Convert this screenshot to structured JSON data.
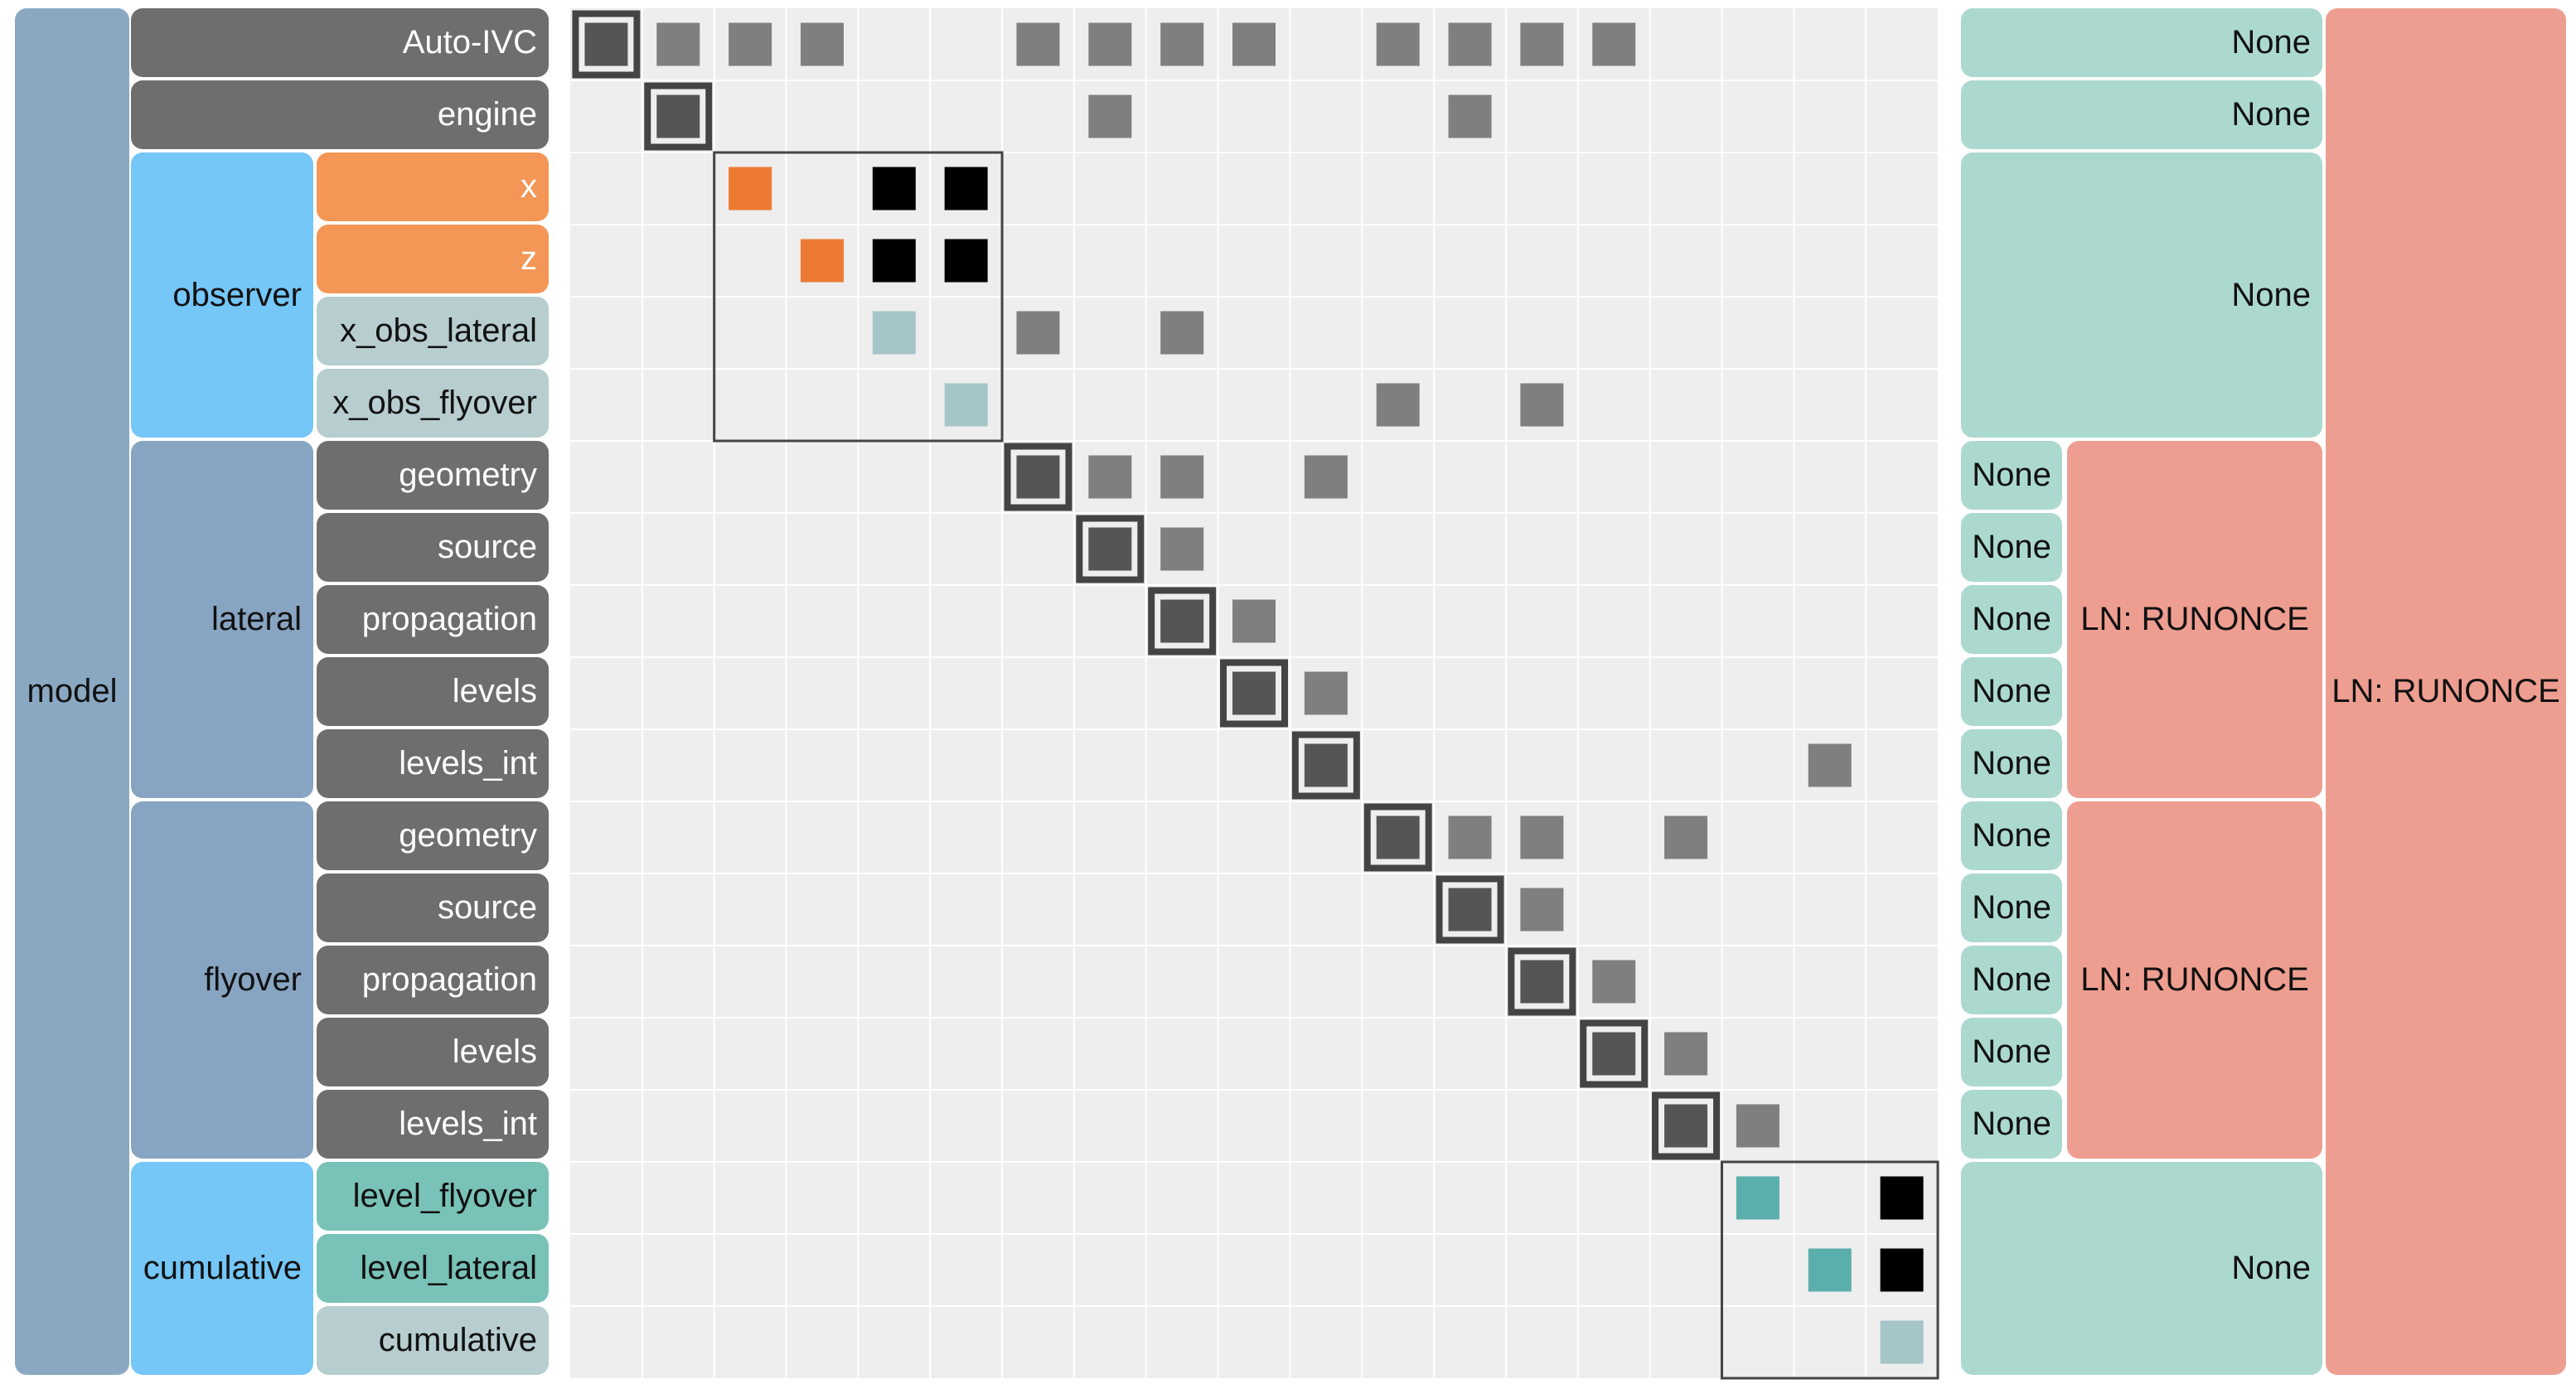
{
  "colors": {
    "model": "#8aa8c2",
    "group_blue": "#74c7f7",
    "group_slate": "#87a5c2",
    "var_gray": "#6e6e6e",
    "var_orange": "#f39656",
    "var_teal": "#79c2b8",
    "var_light": "#b7cdd0",
    "solver_none": "#acd9cf",
    "solver_ln": "#ee9e90",
    "matrix_bg": "#eeeeee",
    "cell_dark": "#6e6e6e",
    "cell_gray": "#7f7f7f",
    "cell_black": "#000000",
    "cell_orange": "#ed7a32",
    "cell_teal": "#5aaeab",
    "cell_lightblue": "#a6c5c9",
    "outline": "#444444"
  },
  "model": {
    "label": "model"
  },
  "groups": [
    {
      "label": "Auto-IVC",
      "leaf": true
    },
    {
      "label": "engine",
      "leaf": true
    },
    {
      "label": "observer",
      "leaf": false
    },
    {
      "label": "lateral",
      "leaf": false
    },
    {
      "label": "flyover",
      "leaf": false
    },
    {
      "label": "cumulative",
      "leaf": false
    }
  ],
  "variables": [
    {
      "label": "x",
      "color": "orange"
    },
    {
      "label": "z",
      "color": "orange"
    },
    {
      "label": "x_obs_lateral",
      "color": "light"
    },
    {
      "label": "x_obs_flyover",
      "color": "light"
    },
    {
      "label": "geometry",
      "color": "gray"
    },
    {
      "label": "source",
      "color": "gray"
    },
    {
      "label": "propagation",
      "color": "gray"
    },
    {
      "label": "levels",
      "color": "gray"
    },
    {
      "label": "levels_int",
      "color": "gray"
    },
    {
      "label": "geometry",
      "color": "gray"
    },
    {
      "label": "source",
      "color": "gray"
    },
    {
      "label": "propagation",
      "color": "gray"
    },
    {
      "label": "levels",
      "color": "gray"
    },
    {
      "label": "levels_int",
      "color": "gray"
    },
    {
      "label": "level_flyover",
      "color": "teal"
    },
    {
      "label": "level_lateral",
      "color": "teal"
    },
    {
      "label": "cumulative",
      "color": "light"
    }
  ],
  "linear_solvers": {
    "auto_ivc": "None",
    "engine": "None",
    "observer": "None",
    "lateral_items": [
      "None",
      "None",
      "None",
      "None",
      "None"
    ],
    "lateral_group": "LN: RUNONCE",
    "flyover_items": [
      "None",
      "None",
      "None",
      "None",
      "None"
    ],
    "flyover_group": "LN: RUNONCE",
    "cumulative": "None",
    "model": "LN: RUNONCE"
  },
  "matrix": {
    "size": 19,
    "diagonal": [
      "dark",
      "dark",
      "orange",
      "orange",
      "lightblue",
      "lightblue",
      "dark",
      "dark",
      "dark",
      "dark",
      "dark",
      "dark",
      "dark",
      "dark",
      "dark",
      "dark",
      "teal",
      "teal",
      "lightblue"
    ],
    "outlined_diagonal": [
      0,
      1,
      6,
      7,
      8,
      9,
      10,
      11,
      12,
      13,
      14,
      15
    ],
    "offdiagonal": [
      {
        "row": 0,
        "col": 1,
        "color": "gray"
      },
      {
        "row": 0,
        "col": 2,
        "color": "gray"
      },
      {
        "row": 0,
        "col": 3,
        "color": "gray"
      },
      {
        "row": 0,
        "col": 6,
        "color": "gray"
      },
      {
        "row": 0,
        "col": 7,
        "color": "gray"
      },
      {
        "row": 0,
        "col": 8,
        "color": "gray"
      },
      {
        "row": 0,
        "col": 9,
        "color": "gray"
      },
      {
        "row": 0,
        "col": 11,
        "color": "gray"
      },
      {
        "row": 0,
        "col": 12,
        "color": "gray"
      },
      {
        "row": 0,
        "col": 13,
        "color": "gray"
      },
      {
        "row": 0,
        "col": 14,
        "color": "gray"
      },
      {
        "row": 1,
        "col": 7,
        "color": "gray"
      },
      {
        "row": 1,
        "col": 12,
        "color": "gray"
      },
      {
        "row": 2,
        "col": 4,
        "color": "black"
      },
      {
        "row": 2,
        "col": 5,
        "color": "black"
      },
      {
        "row": 3,
        "col": 4,
        "color": "black"
      },
      {
        "row": 3,
        "col": 5,
        "color": "black"
      },
      {
        "row": 4,
        "col": 6,
        "color": "gray"
      },
      {
        "row": 4,
        "col": 8,
        "color": "gray"
      },
      {
        "row": 5,
        "col": 11,
        "color": "gray"
      },
      {
        "row": 5,
        "col": 13,
        "color": "gray"
      },
      {
        "row": 6,
        "col": 7,
        "color": "gray"
      },
      {
        "row": 6,
        "col": 8,
        "color": "gray"
      },
      {
        "row": 6,
        "col": 10,
        "color": "gray"
      },
      {
        "row": 7,
        "col": 8,
        "color": "gray"
      },
      {
        "row": 8,
        "col": 9,
        "color": "gray"
      },
      {
        "row": 9,
        "col": 10,
        "color": "gray"
      },
      {
        "row": 10,
        "col": 17,
        "color": "gray"
      },
      {
        "row": 11,
        "col": 12,
        "color": "gray"
      },
      {
        "row": 11,
        "col": 13,
        "color": "gray"
      },
      {
        "row": 11,
        "col": 15,
        "color": "gray"
      },
      {
        "row": 12,
        "col": 13,
        "color": "gray"
      },
      {
        "row": 13,
        "col": 14,
        "color": "gray"
      },
      {
        "row": 14,
        "col": 15,
        "color": "gray"
      },
      {
        "row": 15,
        "col": 16,
        "color": "gray"
      },
      {
        "row": 16,
        "col": 18,
        "color": "black"
      },
      {
        "row": 17,
        "col": 18,
        "color": "black"
      }
    ],
    "group_boxes": [
      {
        "from": 2,
        "to": 5
      },
      {
        "from": 16,
        "to": 18
      }
    ]
  }
}
